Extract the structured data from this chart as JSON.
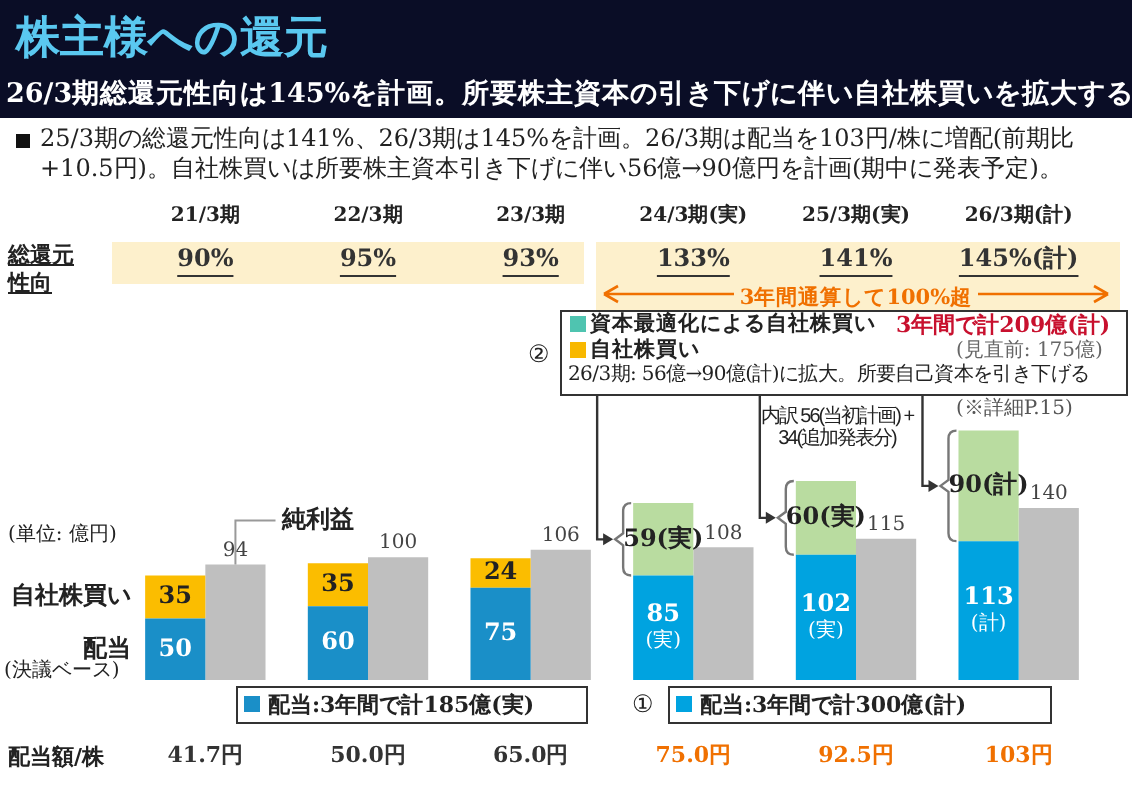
{
  "chart_data": {
    "type": "bar",
    "title": "株主様への還元",
    "subtitle": "26/3期総還元性向は145%を計画。所要株主資本の引き下げに伴い自社株買いを拡大する",
    "categories": [
      "21/3期",
      "22/3期",
      "23/3期",
      "24/3期(実)",
      "25/3期(実)",
      "26/3期(計)"
    ],
    "stacked": true,
    "series": [
      {
        "name": "配当",
        "colors": [
          "#1a8fc8",
          "#1a8fc8",
          "#1a8fc8",
          "#00a3e0",
          "#00a3e0",
          "#00a3e0"
        ],
        "values": [
          50,
          60,
          75,
          85,
          102,
          113
        ],
        "value_labels": [
          "50",
          "60",
          "75",
          "85\n(実)",
          "102\n(実)",
          "113\n(計)"
        ]
      },
      {
        "name": "自社株買い",
        "colors": [
          "#fbbd00",
          "#fbbd00",
          "#fbbd00",
          "#b9dca0",
          "#b9dca0",
          "#b9dca0"
        ],
        "values": [
          35,
          35,
          24,
          59,
          60,
          90
        ],
        "value_labels": [
          "35",
          "35",
          "24",
          "59(実)",
          "60(実)",
          "90(計)"
        ]
      },
      {
        "name": "純利益",
        "axis": "y2",
        "color": "#bfbfbf",
        "values": [
          94,
          100,
          106,
          108,
          115,
          140
        ],
        "value_labels": [
          "94",
          "100",
          "106",
          "108",
          "115",
          "140"
        ]
      }
    ],
    "tick_labels": "x",
    "grid": false,
    "legend": false,
    "annotations": [
      "25/3期の総還元性向は141%、26/3期は145%を計画。26/3期は配当を103円/株に増配(前期比+10.5円)。自社株買いは所要株主資本引き下げに伴い56億→90億円を計画(期中に発表予定)。",
      "総還元性向",
      "3年間通算して100%超",
      "(単位: 億円)",
      "(決議ベース)",
      "②",
      "資本最適化による自社株買い",
      "自社株買い",
      "3年間で計209億(計)",
      "(見直前: 175億)",
      "26/3期: 56億→90億(計)に拡大。所要自己資本を引き下げる",
      "(※詳細P.15)",
      "内訳 56(当初計画) + 34(追加発表分)",
      "配当:3年間で計185億(実)",
      "①",
      "配当:3年間で計300億(計)",
      "配当額/株",
      "90%",
      "95%",
      "93%",
      "133%",
      "141%",
      "145%(計)",
      "41.7円",
      "50.0円",
      "65.0円",
      "75.0円",
      "92.5円",
      "103円"
    ]
  }
}
